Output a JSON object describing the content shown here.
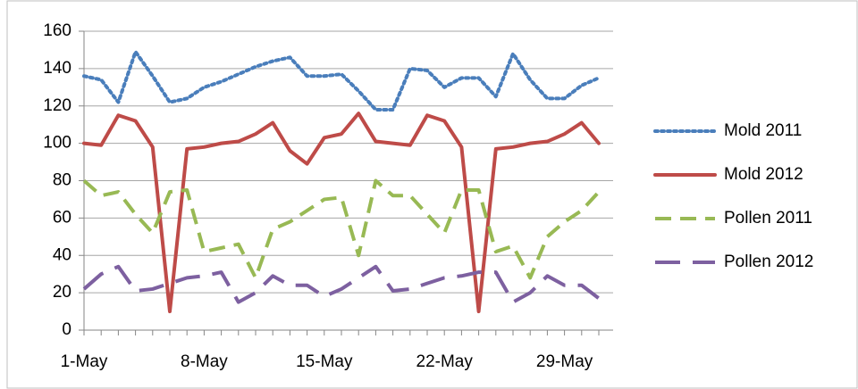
{
  "chart_data": {
    "type": "line",
    "categories": [
      "1-May",
      null,
      null,
      null,
      null,
      null,
      null,
      "8-May",
      null,
      null,
      null,
      null,
      null,
      null,
      "15-May",
      null,
      null,
      null,
      null,
      null,
      null,
      "22-May",
      null,
      null,
      null,
      null,
      null,
      null,
      "29-May",
      null,
      null
    ],
    "series": [
      {
        "name": "Mold 2011",
        "color": "#4a7ebb",
        "dash": "dotted",
        "values": [
          136,
          134,
          122,
          149,
          136,
          122,
          124,
          130,
          133,
          137,
          141,
          144,
          146,
          136,
          136,
          137,
          128,
          118,
          118,
          140,
          139,
          130,
          135,
          135,
          125,
          148,
          134,
          124,
          124,
          131,
          135
        ]
      },
      {
        "name": "Mold 2012",
        "color": "#be4b48",
        "dash": "solid",
        "values": [
          100,
          99,
          115,
          112,
          98,
          10,
          97,
          98,
          100,
          101,
          105,
          111,
          96,
          89,
          103,
          105,
          116,
          101,
          100,
          99,
          115,
          112,
          98,
          10,
          97,
          98,
          100,
          101,
          105,
          111,
          100
        ]
      },
      {
        "name": "Pollen 2011",
        "color": "#98b954",
        "dash": "dashed",
        "values": [
          80,
          72,
          74,
          62,
          52,
          74,
          75,
          42,
          44,
          46,
          28,
          54,
          58,
          64,
          70,
          71,
          40,
          80,
          72,
          72,
          62,
          52,
          75,
          75,
          42,
          45,
          28,
          50,
          58,
          64,
          74
        ]
      },
      {
        "name": "Pollen 2012",
        "color": "#7d60a0",
        "dash": "longdash",
        "values": [
          22,
          30,
          34,
          21,
          22,
          25,
          28,
          29,
          31,
          15,
          20,
          29,
          24,
          24,
          18,
          22,
          28,
          34,
          21,
          22,
          25,
          28,
          29,
          31,
          31,
          15,
          20,
          29,
          24,
          24,
          17
        ]
      }
    ],
    "ylim": [
      0,
      160
    ],
    "yticks": [
      0,
      20,
      40,
      60,
      80,
      100,
      120,
      140,
      160
    ],
    "grid": true,
    "legend": "right"
  }
}
